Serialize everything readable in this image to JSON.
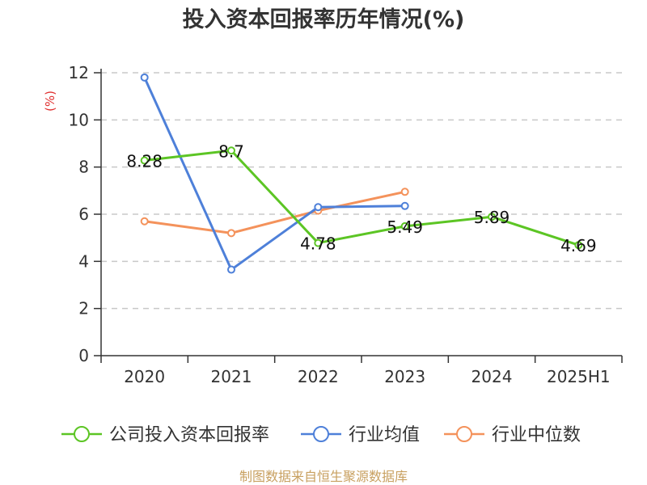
{
  "chart_data": {
    "type": "line",
    "title": "投入资本回报率历年情况(%)",
    "ylabel": "(%)",
    "xlabel": "",
    "categories": [
      "2020",
      "2021",
      "2022",
      "2023",
      "2024",
      "2025H1"
    ],
    "ylim": [
      0,
      12
    ],
    "yticks": [
      0,
      2,
      4,
      6,
      8,
      10,
      12
    ],
    "grid": true,
    "legend_position": "bottom",
    "series": [
      {
        "name": "公司投入资本回报率",
        "values": [
          8.28,
          8.7,
          4.78,
          5.49,
          5.89,
          4.69
        ],
        "labels": [
          "8.28",
          "8.7",
          "4.78",
          "5.49",
          "5.89",
          "4.69"
        ],
        "color": "#5cc524",
        "show_labels": true
      },
      {
        "name": "行业均值",
        "values": [
          11.8,
          3.65,
          6.3,
          6.35,
          null,
          null
        ],
        "color": "#4e80d9",
        "show_labels": false
      },
      {
        "name": "行业中位数",
        "values": [
          5.7,
          5.2,
          6.15,
          6.95,
          null,
          null
        ],
        "color": "#f4925b",
        "show_labels": false
      }
    ]
  },
  "source_text": "制图数据来自恒生聚源数据库"
}
